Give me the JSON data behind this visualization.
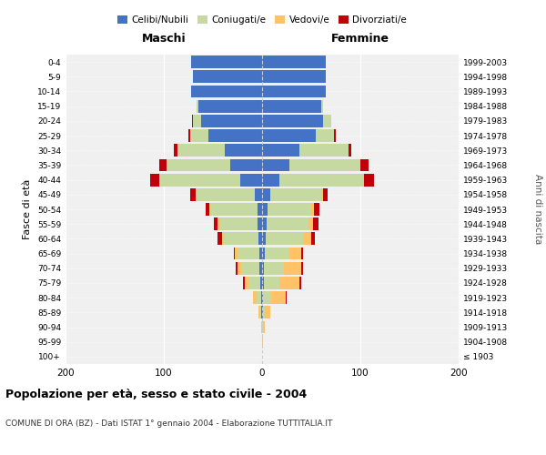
{
  "age_groups": [
    "100+",
    "95-99",
    "90-94",
    "85-89",
    "80-84",
    "75-79",
    "70-74",
    "65-69",
    "60-64",
    "55-59",
    "50-54",
    "45-49",
    "40-44",
    "35-39",
    "30-34",
    "25-29",
    "20-24",
    "15-19",
    "10-14",
    "5-9",
    "0-4"
  ],
  "birth_years": [
    "≤ 1903",
    "1904-1908",
    "1909-1913",
    "1914-1918",
    "1919-1923",
    "1924-1928",
    "1929-1933",
    "1934-1938",
    "1939-1943",
    "1944-1948",
    "1949-1953",
    "1954-1958",
    "1959-1963",
    "1964-1968",
    "1969-1973",
    "1974-1978",
    "1979-1983",
    "1984-1988",
    "1989-1993",
    "1994-1998",
    "1999-2003"
  ],
  "colors": {
    "celibi": "#4472c4",
    "coniugati": "#c5d9a0",
    "vedovi": "#ffc266",
    "divorziati": "#c0000b"
  },
  "maschi_celibi": [
    0,
    0,
    0,
    1,
    1,
    2,
    3,
    3,
    4,
    5,
    5,
    7,
    22,
    32,
    38,
    55,
    62,
    65,
    72,
    70,
    72
  ],
  "maschi_coniugati": [
    0,
    0,
    1,
    2,
    5,
    12,
    18,
    22,
    35,
    38,
    48,
    60,
    82,
    65,
    48,
    18,
    8,
    2,
    0,
    0,
    0
  ],
  "maschi_vedovi": [
    0,
    0,
    0,
    1,
    3,
    4,
    4,
    3,
    2,
    2,
    1,
    1,
    1,
    0,
    0,
    0,
    0,
    0,
    0,
    0,
    0
  ],
  "maschi_divorziati": [
    0,
    0,
    0,
    0,
    0,
    1,
    2,
    1,
    4,
    4,
    3,
    5,
    9,
    8,
    4,
    2,
    1,
    0,
    0,
    0,
    0
  ],
  "femmine_celibi": [
    0,
    0,
    0,
    1,
    1,
    2,
    2,
    3,
    4,
    5,
    6,
    8,
    18,
    28,
    38,
    55,
    62,
    60,
    65,
    65,
    65
  ],
  "femmine_coniugati": [
    0,
    0,
    1,
    2,
    8,
    16,
    20,
    25,
    38,
    42,
    44,
    52,
    85,
    72,
    50,
    18,
    8,
    2,
    0,
    0,
    0
  ],
  "femmine_vedovi": [
    0,
    1,
    2,
    5,
    15,
    20,
    18,
    12,
    8,
    5,
    3,
    2,
    1,
    0,
    0,
    0,
    0,
    0,
    0,
    0,
    0
  ],
  "femmine_divorziati": [
    0,
    0,
    0,
    0,
    1,
    2,
    2,
    2,
    4,
    5,
    5,
    5,
    10,
    8,
    3,
    2,
    0,
    0,
    0,
    0,
    0
  ],
  "title": "Popolazione per età, sesso e stato civile - 2004",
  "subtitle": "COMUNE DI ORA (BZ) - Dati ISTAT 1° gennaio 2004 - Elaborazione TUTTITALIA.IT",
  "maschi_label": "Maschi",
  "femmine_label": "Femmine",
  "ylabel_left": "Fasce di età",
  "ylabel_right": "Anni di nascita",
  "xlim": 200,
  "legend_labels": [
    "Celibi/Nubili",
    "Coniugati/e",
    "Vedovi/e",
    "Divorziati/e"
  ],
  "bg_color": "#f0f0f0"
}
